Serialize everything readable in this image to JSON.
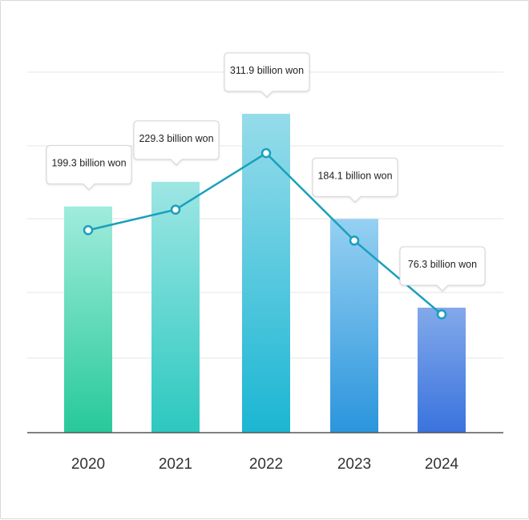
{
  "chart_data": {
    "type": "bar",
    "categories": [
      "2020",
      "2021",
      "2022",
      "2023",
      "2024"
    ],
    "values": [
      199.3,
      229.3,
      311.9,
      184.1,
      76.3
    ],
    "unit": "billion won",
    "data_labels": [
      "199.3 billion won",
      "229.3 billion won",
      "311.9 billion won",
      "184.1 billion won",
      "76.3 billion won"
    ],
    "title": "",
    "xlabel": "",
    "ylabel": "",
    "line_overlay": true,
    "grid": true,
    "legend": "none",
    "colors": {
      "bar_top": [
        "#a0ecdc",
        "#9ee6e4",
        "#96dcea",
        "#95d0f2",
        "#82a9ea"
      ],
      "bar_bottom": [
        "#27c99a",
        "#2cc8c0",
        "#1bb6d3",
        "#2b95dc",
        "#3a73de"
      ],
      "line": "#1a9fbd",
      "grid": "#e6e6e6",
      "axis": "#555555"
    }
  }
}
